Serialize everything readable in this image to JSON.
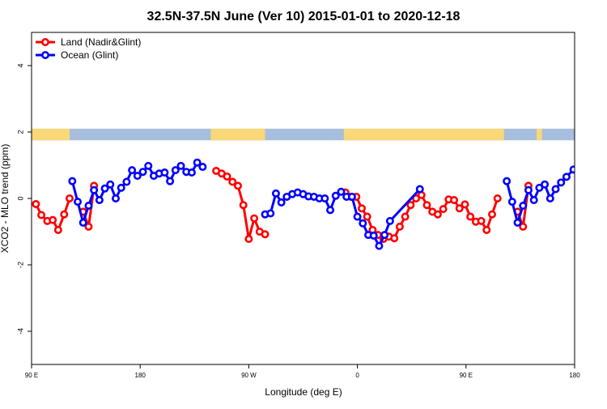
{
  "chart_data": {
    "type": "line",
    "title": "32.5N-37.5N June (Ver 10)   2015-01-01 to 2020-12-18",
    "xlabel": "Longitude (deg E)",
    "ylabel": "XCO2 - MLO trend (ppm)",
    "xlim": [
      0,
      1
    ],
    "ylim": [
      -5,
      5
    ],
    "x_ticks": [
      {
        "pos": 0.0,
        "label": "90 E"
      },
      {
        "pos": 0.2,
        "label": "180"
      },
      {
        "pos": 0.4,
        "label": "90 W"
      },
      {
        "pos": 0.6,
        "label": "0"
      },
      {
        "pos": 0.8,
        "label": "90 E"
      },
      {
        "pos": 1.0,
        "label": "180"
      }
    ],
    "y_ticks": [
      {
        "value": 4,
        "label": "4"
      },
      {
        "value": 2,
        "label": "2"
      },
      {
        "value": 0,
        "label": "0"
      },
      {
        "value": -2,
        "label": "-2"
      },
      {
        "value": -4,
        "label": "-4"
      }
    ],
    "grid": false,
    "legend_position": "top-left",
    "land_strip": {
      "y_range": [
        1.75,
        2.1
      ],
      "ocean_color": "#a7bfdd",
      "land_color": "#f8d878",
      "land_spans": [
        [
          0.0,
          0.07
        ],
        [
          0.33,
          0.43
        ],
        [
          0.575,
          0.87
        ],
        [
          0.93,
          0.94
        ]
      ]
    },
    "series": [
      {
        "name": "Land (Nadir&Glint)",
        "color": "#ff0000",
        "segments": [
          [
            [
              0.008,
              -0.17
            ],
            [
              0.018,
              -0.5
            ],
            [
              0.029,
              -0.68
            ],
            [
              0.039,
              -0.65
            ],
            [
              0.049,
              -0.95
            ],
            [
              0.06,
              -0.48
            ],
            [
              0.07,
              0.0
            ]
          ],
          [
            [
              0.095,
              -0.4
            ],
            [
              0.105,
              -0.85
            ],
            [
              0.115,
              0.38
            ]
          ],
          [
            [
              0.34,
              0.83
            ],
            [
              0.35,
              0.75
            ],
            [
              0.36,
              0.66
            ],
            [
              0.37,
              0.5
            ],
            [
              0.38,
              0.38
            ],
            [
              0.39,
              -0.2
            ],
            [
              0.4,
              -1.22
            ],
            [
              0.41,
              -0.6
            ],
            [
              0.42,
              -1.0
            ],
            [
              0.43,
              -1.08
            ]
          ],
          [
            [
              0.578,
              0.18
            ],
            [
              0.588,
              0.05
            ],
            [
              0.598,
              0.05
            ],
            [
              0.608,
              -0.3
            ],
            [
              0.618,
              -0.55
            ],
            [
              0.628,
              -0.95
            ],
            [
              0.638,
              -1.1
            ],
            [
              0.648,
              -1.22
            ],
            [
              0.658,
              -1.15
            ],
            [
              0.668,
              -1.2
            ],
            [
              0.678,
              -0.85
            ],
            [
              0.688,
              -0.55
            ],
            [
              0.698,
              -0.2
            ],
            [
              0.708,
              0.0
            ],
            [
              0.718,
              0.1
            ],
            [
              0.728,
              -0.2
            ],
            [
              0.738,
              -0.4
            ],
            [
              0.748,
              -0.48
            ],
            [
              0.758,
              -0.32
            ],
            [
              0.768,
              -0.03
            ],
            [
              0.778,
              -0.05
            ],
            [
              0.788,
              -0.3
            ],
            [
              0.798,
              -0.18
            ],
            [
              0.808,
              -0.55
            ],
            [
              0.818,
              -0.7
            ],
            [
              0.828,
              -0.68
            ],
            [
              0.838,
              -0.95
            ],
            [
              0.848,
              -0.48
            ],
            [
              0.858,
              0.0
            ]
          ],
          [
            [
              0.895,
              -0.4
            ],
            [
              0.905,
              -0.85
            ],
            [
              0.915,
              0.38
            ]
          ]
        ]
      },
      {
        "name": "Ocean (Glint)",
        "color": "#0000ff",
        "segments": [
          [
            [
              0.075,
              0.52
            ],
            [
              0.085,
              -0.1
            ],
            [
              0.095,
              -0.73
            ],
            [
              0.105,
              -0.22
            ],
            [
              0.115,
              0.25
            ],
            [
              0.125,
              -0.05
            ],
            [
              0.135,
              0.3
            ],
            [
              0.145,
              0.42
            ],
            [
              0.155,
              0.0
            ],
            [
              0.165,
              0.32
            ],
            [
              0.175,
              0.5
            ],
            [
              0.185,
              0.85
            ],
            [
              0.195,
              0.68
            ],
            [
              0.205,
              0.8
            ],
            [
              0.215,
              0.98
            ],
            [
              0.225,
              0.68
            ],
            [
              0.235,
              0.75
            ],
            [
              0.245,
              0.78
            ],
            [
              0.255,
              0.52
            ],
            [
              0.265,
              0.85
            ],
            [
              0.275,
              0.98
            ],
            [
              0.285,
              0.8
            ],
            [
              0.295,
              0.78
            ],
            [
              0.305,
              1.08
            ],
            [
              0.315,
              0.95
            ]
          ],
          [
            [
              0.43,
              -0.48
            ],
            [
              0.44,
              -0.45
            ],
            [
              0.45,
              0.15
            ],
            [
              0.46,
              -0.12
            ],
            [
              0.47,
              0.05
            ],
            [
              0.48,
              0.13
            ],
            [
              0.49,
              0.18
            ],
            [
              0.5,
              0.13
            ],
            [
              0.51,
              0.06
            ],
            [
              0.52,
              0.05
            ],
            [
              0.53,
              0.0
            ],
            [
              0.54,
              0.0
            ],
            [
              0.55,
              -0.35
            ],
            [
              0.56,
              0.08
            ],
            [
              0.57,
              0.2
            ],
            [
              0.58,
              0.05
            ],
            [
              0.59,
              0.05
            ],
            [
              0.6,
              -0.55
            ],
            [
              0.61,
              -0.75
            ],
            [
              0.62,
              -1.1
            ],
            [
              0.63,
              -1.12
            ],
            [
              0.64,
              -1.43
            ],
            [
              0.65,
              -1.1
            ],
            [
              0.66,
              -0.68
            ],
            [
              0.715,
              0.28
            ]
          ],
          [
            [
              0.875,
              0.52
            ],
            [
              0.885,
              -0.1
            ],
            [
              0.895,
              -0.73
            ],
            [
              0.905,
              -0.22
            ],
            [
              0.915,
              0.25
            ],
            [
              0.925,
              -0.05
            ],
            [
              0.935,
              0.32
            ],
            [
              0.945,
              0.42
            ],
            [
              0.955,
              0.0
            ],
            [
              0.965,
              0.28
            ],
            [
              0.975,
              0.48
            ],
            [
              0.985,
              0.65
            ],
            [
              0.998,
              0.87
            ]
          ]
        ]
      }
    ]
  }
}
